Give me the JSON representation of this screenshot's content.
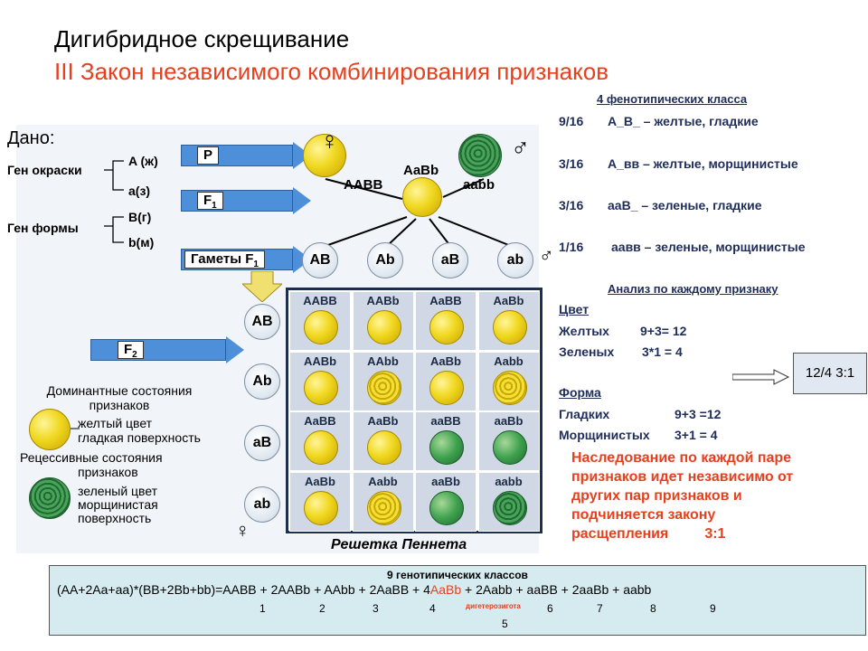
{
  "title": "Дигибридное скрещивание",
  "subtitle": "III Закон независимого комбинирования признаков",
  "dano": {
    "heading": "Дано:",
    "gene_color": "Ген окраски",
    "gene_shape": "Ген формы",
    "A": "A (ж)",
    "a": "a(з)",
    "B": "B(г)",
    "b": "b(м)"
  },
  "arrows": {
    "p": "P",
    "f1": "F",
    "f1_sub": "1",
    "gametes": "Гаметы F",
    "gametes_sub": "1",
    "f2": "F",
    "f2_sub": "2"
  },
  "parents": {
    "mother": "AABB",
    "father": "aabb",
    "child": "AaBb"
  },
  "gametes": [
    "AB",
    "Ab",
    "aB",
    "ab"
  ],
  "grid": [
    [
      "AABB",
      "AABb",
      "AaBB",
      "AaBb"
    ],
    [
      "AABb",
      "AAbb",
      "AaBb",
      "Aabb"
    ],
    [
      "AaBB",
      "AaBb",
      "aaBB",
      "aaBb"
    ],
    [
      "AaBb",
      "Aabb",
      "aaBb",
      "aabb"
    ]
  ],
  "grid_types": [
    [
      "y",
      "y",
      "y",
      "y"
    ],
    [
      "y",
      "wy",
      "y",
      "wy"
    ],
    [
      "y",
      "y",
      "g",
      "g"
    ],
    [
      "y",
      "wy",
      "g",
      "wg"
    ]
  ],
  "legend": {
    "dominant_title_1": "Доминантные состояния",
    "dominant_title_2": "признаков",
    "dominant_desc_1": "желтый цвет",
    "dominant_desc_2": "гладкая поверхность",
    "recessive_title_1": "Рецессивные состояния",
    "recessive_title_2": "признаков",
    "recessive_desc_1": "зеленый цвет",
    "recessive_desc_2": "морщинистая",
    "recessive_desc_3": "поверхность"
  },
  "punnett_caption": "Решетка Пеннета",
  "phenotypes": {
    "heading": "4 фенотипических класса",
    "rows": [
      {
        "frac": "9/16",
        "text": "A_B_ – желтые, гладкие"
      },
      {
        "frac": "3/16",
        "text": "A_вв – желтые, морщинистые"
      },
      {
        "frac": "3/16",
        "text": "aaB_ – зеленые, гладкие"
      },
      {
        "frac": "1/16",
        "text": "аавв – зеленые, морщинистые"
      }
    ]
  },
  "analysis": {
    "heading": "Анализ по каждому признаку",
    "color_label": "Цвет",
    "yellow": "Желтых",
    "yellow_val": "9+3= 12",
    "green": "Зеленых",
    "green_val": "3*1 = 4",
    "ratio": "12/4  3:1",
    "shape_label": "Форма",
    "smooth": "Гладких",
    "smooth_val": "9+3 =12",
    "wrinkled": "Морщинистых",
    "wrinkled_val": "3+1 = 4"
  },
  "conclusion": [
    "Наследование по каждой паре",
    "признаков идет независимо от",
    "других пар признаков и",
    "подчиняется закону",
    "расщепления",
    "3:1"
  ],
  "bottom": {
    "heading": "9 генотипических классов",
    "formula_pre": "(AA+2Aa+aa)*(BB+2Bb+bb)=AABB + 2AABb + AAbb + 2AaBB + 4",
    "formula_highlight": "AaBb",
    "formula_post": " + 2Aabb + aaBB + 2aaBb + aabb",
    "numbers": [
      "1",
      "2",
      "3",
      "4",
      "6",
      "7",
      "8",
      "9"
    ],
    "diheterozygote": "дигетерозигота",
    "five": "5"
  },
  "colors": {
    "accent_red": "#e8401e",
    "arrow_blue": "#4d8fd8",
    "text_navy": "#1f2d5a"
  }
}
